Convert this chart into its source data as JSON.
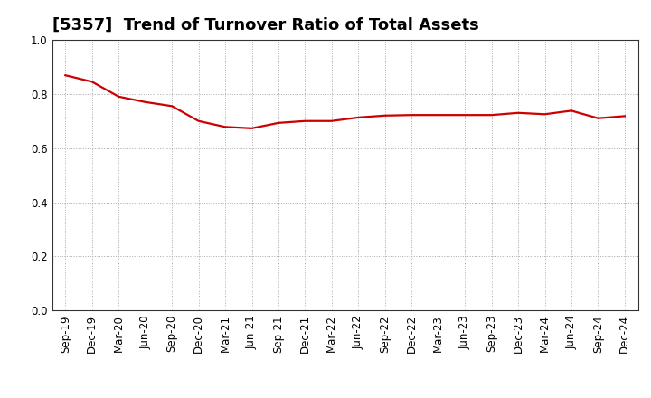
{
  "title": "[5357]  Trend of Turnover Ratio of Total Assets",
  "x_labels": [
    "Sep-19",
    "Dec-19",
    "Mar-20",
    "Jun-20",
    "Sep-20",
    "Dec-20",
    "Mar-21",
    "Jun-21",
    "Sep-21",
    "Dec-21",
    "Mar-22",
    "Jun-22",
    "Sep-22",
    "Dec-22",
    "Mar-23",
    "Jun-23",
    "Sep-23",
    "Dec-23",
    "Mar-24",
    "Jun-24",
    "Sep-24",
    "Dec-24"
  ],
  "y_values": [
    0.869,
    0.845,
    0.79,
    0.77,
    0.755,
    0.7,
    0.678,
    0.673,
    0.693,
    0.7,
    0.7,
    0.713,
    0.72,
    0.722,
    0.722,
    0.722,
    0.722,
    0.73,
    0.725,
    0.738,
    0.71,
    0.718
  ],
  "line_color": "#cc0000",
  "line_width": 1.6,
  "ylim": [
    0.0,
    1.0
  ],
  "yticks": [
    0.0,
    0.2,
    0.4,
    0.6,
    0.8,
    1.0
  ],
  "background_color": "#ffffff",
  "grid_color": "#aaaaaa",
  "title_fontsize": 13,
  "tick_fontsize": 8.5
}
